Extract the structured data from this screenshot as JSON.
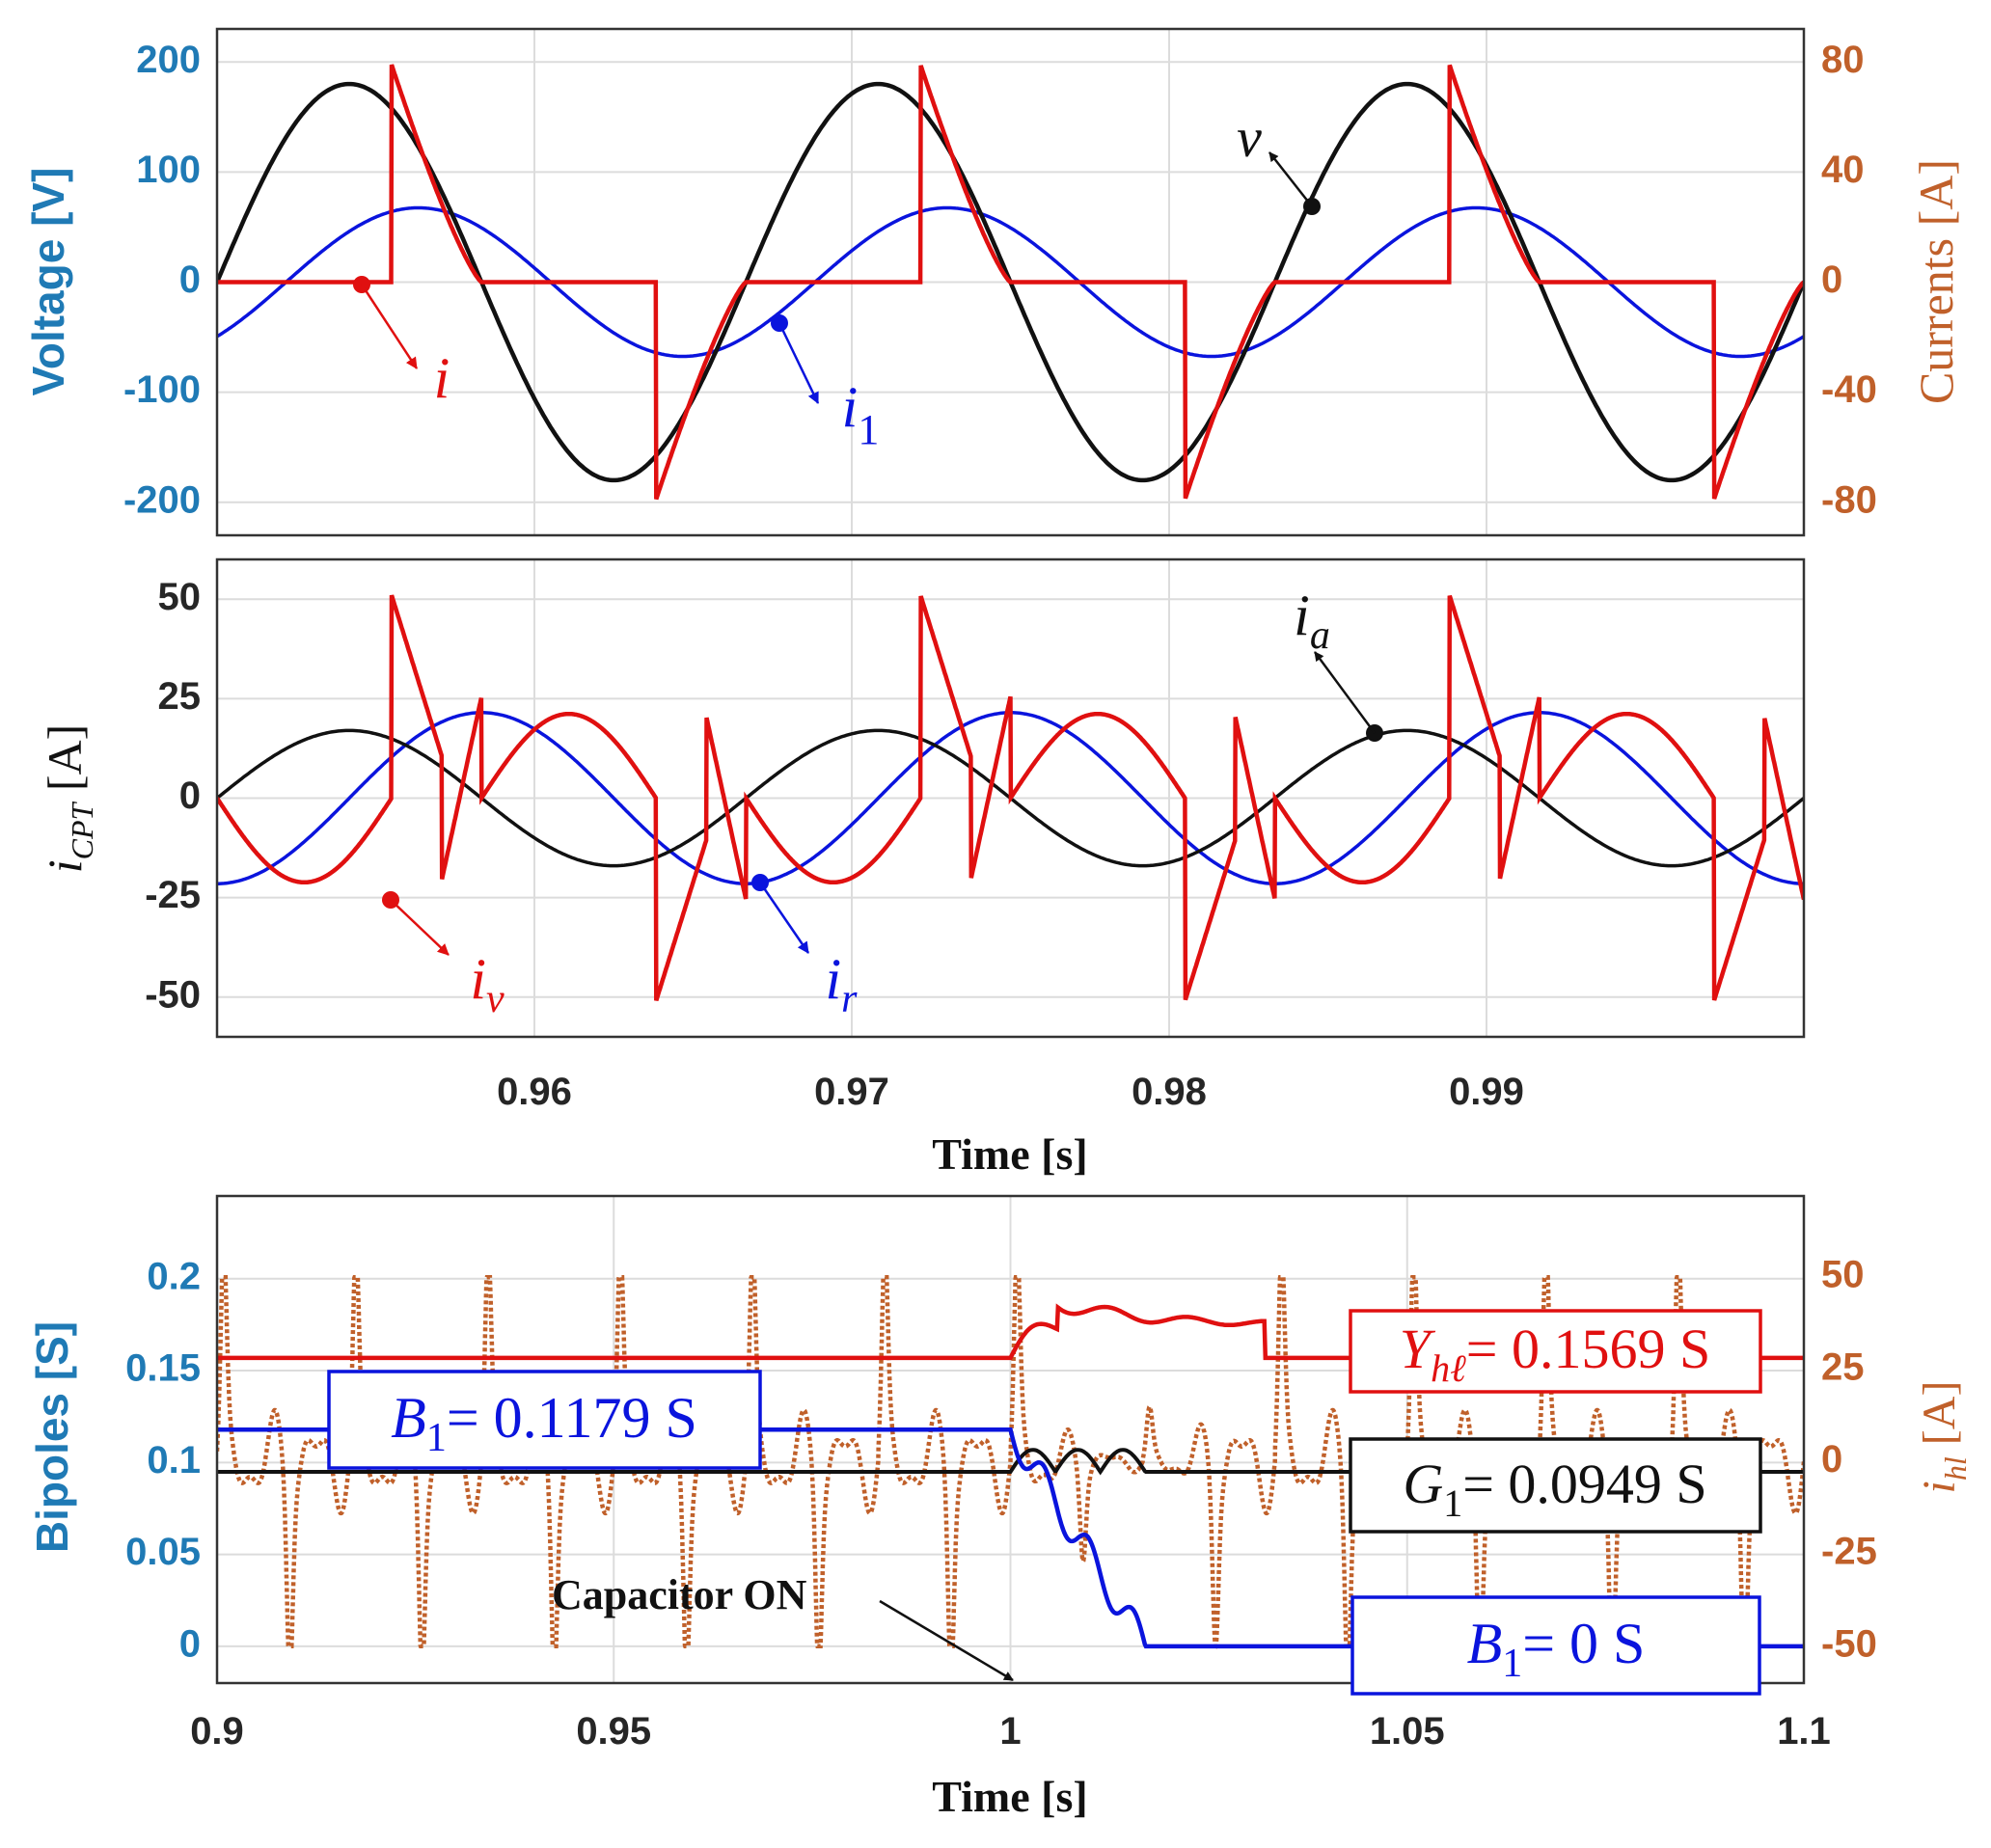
{
  "colors": {
    "voltage_axis": "#1f7ab5",
    "currents_axis": "#c0602a",
    "red": "#e01010",
    "blue": "#0a14dd",
    "black": "#111111",
    "dotted": "#c0602a",
    "grid": "#dcdcdc",
    "frame": "#333333"
  },
  "chart_data": [
    {
      "type": "line",
      "panel": "top",
      "xlim": [
        0.95,
        1.0
      ],
      "ylim_left": [
        -230,
        230
      ],
      "ylim_right": [
        -92,
        92
      ],
      "ylabel_left": "Voltage [V]",
      "ylabel_right": "Currents [A]",
      "yticks_left": [
        "200",
        "100",
        "0",
        "-100",
        "-200"
      ],
      "yticks_right": [
        "80",
        "40",
        "0",
        "-40",
        "-80"
      ],
      "grid": true,
      "series": [
        {
          "name": "v",
          "axis": "left",
          "form": "sine",
          "amplitude": 180,
          "freq_hz": 60,
          "phase_rad": 0,
          "t0": 0.95
        },
        {
          "name": "i_1",
          "axis": "right",
          "form": "sine",
          "amplitude": 27,
          "freq_hz": 60,
          "phase_rad": -0.82,
          "t0": 0.95
        },
        {
          "name": "i",
          "axis": "right",
          "form": "thyristor",
          "peak": 79,
          "fire_after_zero_s": 0.0055,
          "period_s": 0.0166667,
          "t0": 0.95
        }
      ],
      "annotations": [
        {
          "label": "v",
          "series": "v",
          "at_x": 0.9843
        },
        {
          "label": "i",
          "series": "i",
          "at_x": 0.9545
        },
        {
          "label": "i_1",
          "series": "i_1",
          "at_x": 0.9675
        }
      ]
    },
    {
      "type": "line",
      "panel": "middle",
      "xlim": [
        0.95,
        1.0
      ],
      "ylim": [
        -60,
        60
      ],
      "ylabel": "i_CPT [A]",
      "yticks": [
        "50",
        "25",
        "0",
        "-25",
        "-50"
      ],
      "xticks": [
        "0.96",
        "0.97",
        "0.98",
        "0.99"
      ],
      "xlabel": "Time [s]",
      "grid": true,
      "series": [
        {
          "name": "i_a",
          "form": "sine",
          "amplitude": 17,
          "freq_hz": 60,
          "phase_rad": 0,
          "t0": 0.95
        },
        {
          "name": "i_r",
          "form": "sine",
          "amplitude": 21.5,
          "freq_hz": 60,
          "phase_rad": -1.5708,
          "t0": 0.95
        },
        {
          "name": "i_v",
          "form": "sawtooth",
          "peak": 51,
          "fire_after_zero_s": 0.0055,
          "period_s": 0.0166667,
          "t0": 0.95
        }
      ],
      "annotations": [
        {
          "label": "i_a",
          "series": "i_a",
          "at_x": 0.9865
        },
        {
          "label": "i_v",
          "series": "i_v",
          "at_x": 0.9555
        },
        {
          "label": "i_r",
          "series": "i_r",
          "at_x": 0.967
        }
      ]
    },
    {
      "type": "line",
      "panel": "bottom",
      "xlim": [
        0.9,
        1.1
      ],
      "ylim_left": [
        -0.02,
        0.245
      ],
      "ylim_right": [
        -60,
        72
      ],
      "ylabel_left": "Bipoles [S]",
      "ylabel_right": "i_hl [A]",
      "yticks_left": [
        "0.2",
        "0.15",
        "0.1",
        "0.05",
        "0"
      ],
      "yticks_right": [
        "50",
        "25",
        "0",
        "-25",
        "-50"
      ],
      "xticks": [
        "0.9",
        "0.95",
        "1",
        "1.05",
        "1.1"
      ],
      "xlabel": "Time [s]",
      "grid": true,
      "series": [
        {
          "name": "Y_hl",
          "axis": "left",
          "before": 0.1569,
          "after": 0.1569,
          "transient_start": 1.0,
          "transient_end": 1.032
        },
        {
          "name": "B_1",
          "axis": "left",
          "before": 0.1179,
          "after": 0,
          "transient_start": 1.0,
          "transient_end": 1.017
        },
        {
          "name": "G_1",
          "axis": "left",
          "before": 0.0949,
          "after": 0.0949,
          "transient_start": 1.0,
          "transient_end": 1.017
        },
        {
          "name": "i_hl",
          "axis": "right",
          "style": "dotted",
          "form": "harmonic_current",
          "peak": 50,
          "trough": -50
        }
      ],
      "annotations": [
        {
          "label": "Capacitor ON",
          "at_x": 1.0
        }
      ],
      "boxes": [
        {
          "id": "yhl",
          "text": "= 0.1569 S"
        },
        {
          "id": "b1_before",
          "text": "= 0.1179 S"
        },
        {
          "id": "g1",
          "text": "= 0.0949 S"
        },
        {
          "id": "b1_after",
          "text": "= 0 S"
        }
      ]
    }
  ]
}
